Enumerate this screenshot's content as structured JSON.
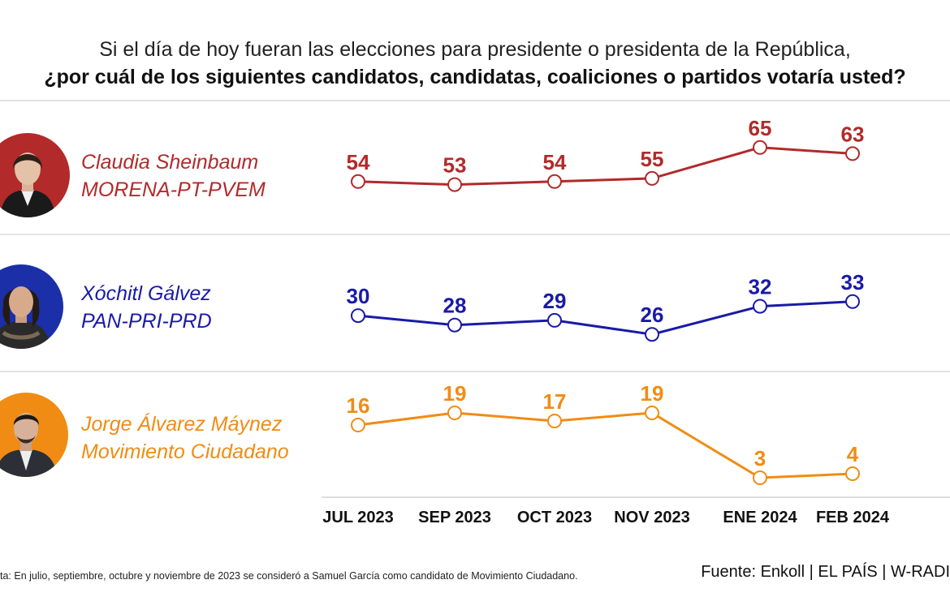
{
  "title": {
    "line1": "Si el día de hoy fueran las elecciones para presidente o presidenta de la República,",
    "line2": "¿por cuál de los siguientes candidatos, candidatas, coaliciones o partidos votaría usted?"
  },
  "candidates": [
    {
      "name": "Claudia Sheinbaum",
      "party": "MORENA-PT-PVEM",
      "color": "#b22a2a",
      "avatar_bg": "#b22a2a",
      "avatar_icon": "portrait-photo"
    },
    {
      "name": "Xóchitl Gálvez",
      "party": "PAN-PRI-PRD",
      "color": "#1a1aa8",
      "avatar_bg": "#1b2fa8",
      "avatar_icon": "portrait-photo"
    },
    {
      "name": "Jorge Álvarez Máynez",
      "party": "Movimiento Ciudadano",
      "color": "#f08c14",
      "avatar_bg": "#f08c14",
      "avatar_icon": "portrait-photo"
    }
  ],
  "chart_data": {
    "type": "line",
    "title": "Si el día de hoy fueran las elecciones para presidente o presidenta de la República, ¿por cuál de los siguientes candidatos, candidatas, coaliciones o partidos votaría usted?",
    "xlabel": "",
    "ylabel": "",
    "grid": false,
    "categories": [
      "JUL 2023",
      "SEP 2023",
      "OCT 2023",
      "NOV 2023",
      "ENE 2024",
      "FEB 2024"
    ],
    "series": [
      {
        "name": "Claudia Sheinbaum MORENA-PT-PVEM",
        "values": [
          54,
          53,
          54,
          55,
          65,
          63
        ],
        "color": "#b22a2a",
        "ylim": [
          50,
          66
        ]
      },
      {
        "name": "Xóchitl Gálvez PAN-PRI-PRD",
        "values": [
          30,
          28,
          29,
          26,
          32,
          33
        ],
        "color": "#1a1aa8",
        "ylim": [
          25,
          34
        ]
      },
      {
        "name": "Jorge Álvarez Máynez Movimiento Ciudadano",
        "values": [
          16,
          19,
          17,
          19,
          3,
          4
        ],
        "color": "#f08c14",
        "ylim": [
          2,
          20
        ]
      }
    ]
  },
  "footer": {
    "note": "ta: En julio, septiembre, octubre y noviembre de 2023 se consideró a Samuel García como candidato de Movimiento Ciudadano.",
    "source": "Fuente: Enkoll | EL PAÍS | W-RADI"
  }
}
